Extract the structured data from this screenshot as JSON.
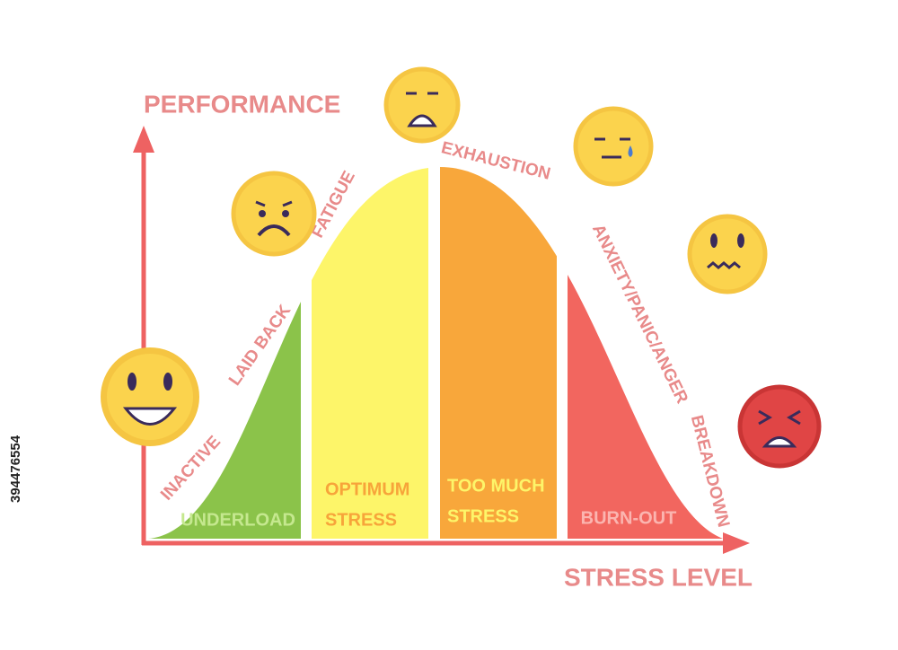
{
  "diagram": {
    "y_axis_label": "PERFORMANCE",
    "x_axis_label": "STRESS LEVEL",
    "curve_labels": [
      "INACTIVE",
      "LAID BACK",
      "FATIGUE",
      "EXHAUSTION",
      "ANXIETY/PANIC/ANGER",
      "BREAKDOWN"
    ],
    "zones": [
      {
        "lines": [
          "UNDERLOAD"
        ]
      },
      {
        "lines": [
          "OPTIMUM",
          "STRESS"
        ]
      },
      {
        "lines": [
          "TOO MUCH",
          "STRESS"
        ]
      },
      {
        "lines": [
          "BURN-OUT"
        ]
      }
    ],
    "stock_id": "394476554"
  }
}
